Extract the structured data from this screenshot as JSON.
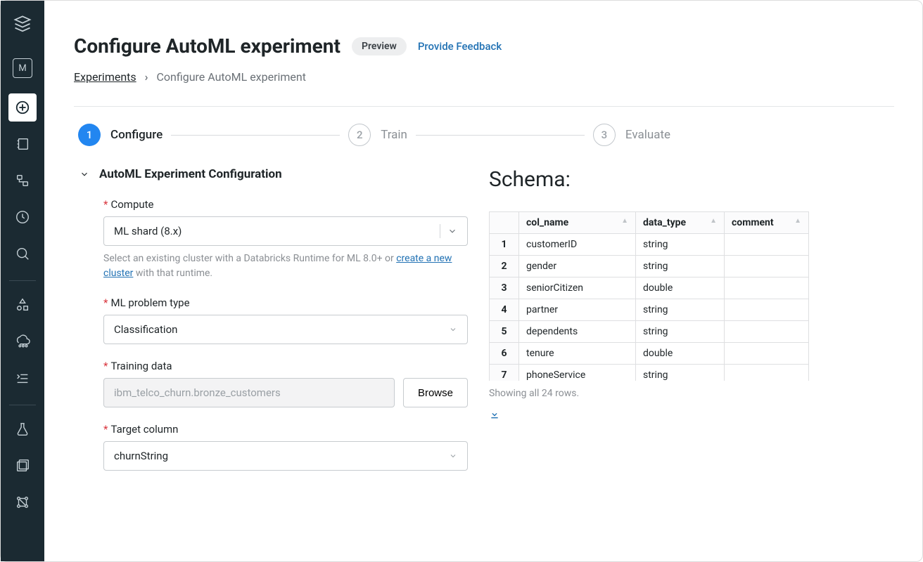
{
  "page": {
    "title": "Configure AutoML experiment",
    "previewBadge": "Preview",
    "feedbackLink": "Provide Feedback"
  },
  "breadcrumb": {
    "root": "Experiments",
    "current": "Configure AutoML experiment"
  },
  "stepper": {
    "steps": [
      {
        "num": "1",
        "label": "Configure",
        "active": true
      },
      {
        "num": "2",
        "label": "Train",
        "active": false
      },
      {
        "num": "3",
        "label": "Evaluate",
        "active": false
      }
    ]
  },
  "config": {
    "section_title": "AutoML Experiment Configuration",
    "compute": {
      "label": "Compute",
      "value": "ML shard (8.x)",
      "helper_prefix": "Select an existing cluster with a Databricks Runtime for ML 8.0+ or ",
      "helper_link": "create a new cluster",
      "helper_suffix": " with that runtime."
    },
    "problem_type": {
      "label": "ML problem type",
      "value": "Classification"
    },
    "training_data": {
      "label": "Training data",
      "placeholder": "ibm_telco_churn.bronze_customers",
      "browse": "Browse"
    },
    "target": {
      "label": "Target column",
      "value": "churnString"
    }
  },
  "schema": {
    "title": "Schema:",
    "columns": [
      "col_name",
      "data_type",
      "comment"
    ],
    "rows": [
      {
        "i": "1",
        "name": "customerID",
        "type": "string",
        "comment": ""
      },
      {
        "i": "2",
        "name": "gender",
        "type": "string",
        "comment": ""
      },
      {
        "i": "3",
        "name": "seniorCitizen",
        "type": "double",
        "comment": ""
      },
      {
        "i": "4",
        "name": "partner",
        "type": "string",
        "comment": ""
      },
      {
        "i": "5",
        "name": "dependents",
        "type": "string",
        "comment": ""
      },
      {
        "i": "6",
        "name": "tenure",
        "type": "double",
        "comment": ""
      },
      {
        "i": "7",
        "name": "phoneService",
        "type": "string",
        "comment": ""
      }
    ],
    "footer": "Showing all 24 rows."
  },
  "colors": {
    "sidebar_bg": "#1b2a32",
    "accent_blue": "#2286f0",
    "link_blue": "#2272b4",
    "required_red": "#d9363e",
    "border": "#c7cbcf",
    "muted": "#8b8f94"
  }
}
